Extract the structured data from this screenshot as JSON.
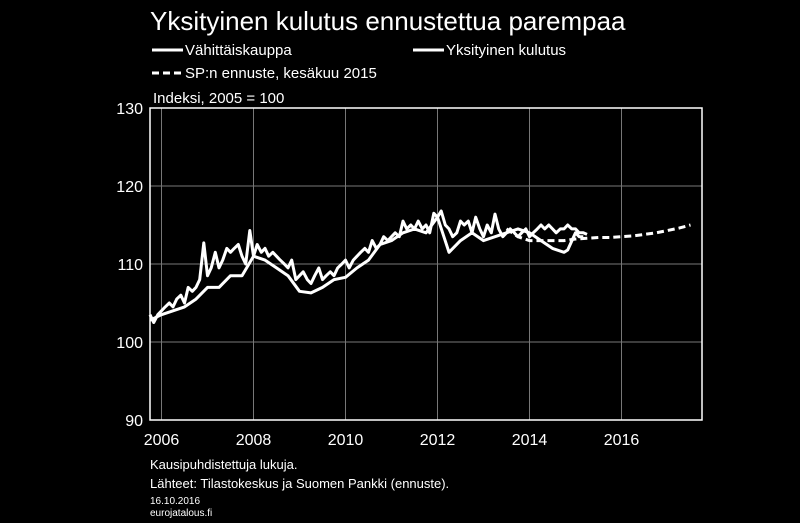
{
  "chart_data": {
    "type": "line",
    "title": "Yksityinen kulutus ennustettua parempaa",
    "unit_label": "Indeksi, 2005 = 100",
    "ylim": [
      90,
      130
    ],
    "yticks": [
      "90",
      "100",
      "110",
      "120",
      "130"
    ],
    "xlim": [
      2005.75,
      2017.75
    ],
    "xticks": [
      {
        "value": 2006,
        "label": "2006"
      },
      {
        "value": 2008,
        "label": "2008"
      },
      {
        "value": 2010,
        "label": "2010"
      },
      {
        "value": 2012,
        "label": "2012"
      },
      {
        "value": 2014,
        "label": "2014"
      },
      {
        "value": 2016,
        "label": "2016"
      }
    ],
    "grid": true,
    "legend_position": "top",
    "series": [
      {
        "name": "Vähittäiskauppa",
        "style": "solid",
        "color": "#ffffff",
        "points": [
          [
            2005.75,
            103.5
          ],
          [
            2005.83,
            102.5
          ],
          [
            2005.92,
            103.5
          ],
          [
            2006.0,
            104.0
          ],
          [
            2006.08,
            104.5
          ],
          [
            2006.17,
            105.0
          ],
          [
            2006.25,
            104.5
          ],
          [
            2006.33,
            105.5
          ],
          [
            2006.42,
            106.0
          ],
          [
            2006.5,
            105.0
          ],
          [
            2006.58,
            107.0
          ],
          [
            2006.67,
            106.5
          ],
          [
            2006.75,
            107.0
          ],
          [
            2006.83,
            108.0
          ],
          [
            2006.92,
            112.7
          ],
          [
            2007.0,
            108.5
          ],
          [
            2007.08,
            109.5
          ],
          [
            2007.17,
            111.5
          ],
          [
            2007.25,
            109.5
          ],
          [
            2007.33,
            110.5
          ],
          [
            2007.42,
            112.0
          ],
          [
            2007.5,
            111.5
          ],
          [
            2007.58,
            112.0
          ],
          [
            2007.67,
            112.5
          ],
          [
            2007.75,
            111.0
          ],
          [
            2007.83,
            110.0
          ],
          [
            2007.92,
            114.3
          ],
          [
            2008.0,
            111.0
          ],
          [
            2008.08,
            112.5
          ],
          [
            2008.17,
            111.5
          ],
          [
            2008.25,
            112.0
          ],
          [
            2008.33,
            111.0
          ],
          [
            2008.42,
            111.5
          ],
          [
            2008.5,
            111.0
          ],
          [
            2008.58,
            110.5
          ],
          [
            2008.67,
            110.0
          ],
          [
            2008.75,
            109.5
          ],
          [
            2008.83,
            110.5
          ],
          [
            2008.92,
            108.0
          ],
          [
            2009.0,
            108.5
          ],
          [
            2009.08,
            109.0
          ],
          [
            2009.17,
            108.0
          ],
          [
            2009.25,
            107.5
          ],
          [
            2009.33,
            108.5
          ],
          [
            2009.42,
            109.5
          ],
          [
            2009.5,
            108.0
          ],
          [
            2009.58,
            108.5
          ],
          [
            2009.67,
            109.0
          ],
          [
            2009.75,
            108.5
          ],
          [
            2009.83,
            109.5
          ],
          [
            2009.92,
            110.0
          ],
          [
            2010.0,
            110.5
          ],
          [
            2010.08,
            109.5
          ],
          [
            2010.17,
            110.5
          ],
          [
            2010.25,
            111.0
          ],
          [
            2010.33,
            111.5
          ],
          [
            2010.42,
            112.0
          ],
          [
            2010.5,
            111.5
          ],
          [
            2010.58,
            113.0
          ],
          [
            2010.67,
            112.0
          ],
          [
            2010.75,
            112.5
          ],
          [
            2010.83,
            113.5
          ],
          [
            2010.92,
            113.0
          ],
          [
            2011.0,
            113.5
          ],
          [
            2011.08,
            114.0
          ],
          [
            2011.17,
            113.5
          ],
          [
            2011.25,
            115.5
          ],
          [
            2011.33,
            114.5
          ],
          [
            2011.42,
            115.0
          ],
          [
            2011.5,
            114.5
          ],
          [
            2011.58,
            115.5
          ],
          [
            2011.67,
            114.5
          ],
          [
            2011.75,
            115.0
          ],
          [
            2011.83,
            114.0
          ],
          [
            2011.92,
            116.5
          ],
          [
            2012.0,
            116.0
          ],
          [
            2012.08,
            116.8
          ],
          [
            2012.17,
            115.0
          ],
          [
            2012.25,
            114.5
          ],
          [
            2012.33,
            113.5
          ],
          [
            2012.42,
            114.0
          ],
          [
            2012.5,
            115.5
          ],
          [
            2012.58,
            115.0
          ],
          [
            2012.67,
            115.5
          ],
          [
            2012.75,
            114.0
          ],
          [
            2012.83,
            116.0
          ],
          [
            2012.92,
            114.5
          ],
          [
            2013.0,
            113.5
          ],
          [
            2013.08,
            115.0
          ],
          [
            2013.17,
            114.0
          ],
          [
            2013.25,
            116.4
          ],
          [
            2013.33,
            114.5
          ],
          [
            2013.42,
            113.5
          ],
          [
            2013.5,
            114.0
          ],
          [
            2013.58,
            114.5
          ],
          [
            2013.67,
            114.0
          ],
          [
            2013.75,
            113.5
          ],
          [
            2013.83,
            114.0
          ],
          [
            2013.92,
            114.5
          ],
          [
            2014.0,
            113.5
          ],
          [
            2014.08,
            114.0
          ],
          [
            2014.17,
            114.5
          ],
          [
            2014.25,
            115.0
          ],
          [
            2014.33,
            114.5
          ],
          [
            2014.42,
            115.0
          ],
          [
            2014.5,
            114.5
          ],
          [
            2014.58,
            114.0
          ],
          [
            2014.67,
            114.5
          ],
          [
            2014.75,
            114.5
          ],
          [
            2014.83,
            115.0
          ],
          [
            2014.92,
            114.5
          ],
          [
            2015.0,
            114.5
          ],
          [
            2015.08,
            114.0
          ],
          [
            2015.17,
            114.0
          ],
          [
            2015.25,
            113.8
          ]
        ]
      },
      {
        "name": "Yksityinen kulutus",
        "style": "solid",
        "color": "#ffffff",
        "points": [
          [
            2005.75,
            102.8
          ],
          [
            2006.0,
            103.5
          ],
          [
            2006.25,
            104.0
          ],
          [
            2006.5,
            104.5
          ],
          [
            2006.75,
            105.5
          ],
          [
            2007.0,
            107.0
          ],
          [
            2007.25,
            107.0
          ],
          [
            2007.5,
            108.5
          ],
          [
            2007.75,
            108.5
          ],
          [
            2008.0,
            111.0
          ],
          [
            2008.25,
            110.5
          ],
          [
            2008.5,
            109.5
          ],
          [
            2008.75,
            108.5
          ],
          [
            2009.0,
            106.5
          ],
          [
            2009.25,
            106.3
          ],
          [
            2009.5,
            107.0
          ],
          [
            2009.75,
            108.0
          ],
          [
            2010.0,
            108.3
          ],
          [
            2010.25,
            109.5
          ],
          [
            2010.5,
            110.5
          ],
          [
            2010.75,
            112.5
          ],
          [
            2011.0,
            113.0
          ],
          [
            2011.25,
            114.0
          ],
          [
            2011.5,
            114.5
          ],
          [
            2011.75,
            114.0
          ],
          [
            2012.0,
            116.0
          ],
          [
            2012.25,
            111.5
          ],
          [
            2012.5,
            113.0
          ],
          [
            2012.75,
            114.0
          ],
          [
            2013.0,
            113.0
          ],
          [
            2013.25,
            113.5
          ],
          [
            2013.5,
            114.0
          ],
          [
            2013.75,
            114.5
          ],
          [
            2014.0,
            114.0
          ],
          [
            2014.25,
            113.0
          ],
          [
            2014.5,
            112.0
          ],
          [
            2014.75,
            111.5
          ],
          [
            2014.83,
            111.8
          ],
          [
            2015.0,
            114.0
          ],
          [
            2015.08,
            113.5
          ],
          [
            2015.17,
            113.5
          ]
        ]
      },
      {
        "name": "SP:n ennuste, kesäkuu 2015",
        "style": "dashed",
        "color": "#ffffff",
        "points": [
          [
            2013.5,
            114.5
          ],
          [
            2013.75,
            113.5
          ],
          [
            2014.0,
            113.0
          ],
          [
            2014.25,
            113.0
          ],
          [
            2014.5,
            113.0
          ],
          [
            2014.75,
            113.0
          ],
          [
            2015.0,
            113.2
          ],
          [
            2015.25,
            113.3
          ],
          [
            2015.5,
            113.4
          ],
          [
            2015.75,
            113.4
          ],
          [
            2016.0,
            113.5
          ],
          [
            2016.25,
            113.6
          ],
          [
            2016.5,
            113.8
          ],
          [
            2016.75,
            114.0
          ],
          [
            2017.0,
            114.3
          ],
          [
            2017.25,
            114.6
          ],
          [
            2017.5,
            115.0
          ]
        ]
      }
    ]
  },
  "notes": {
    "seasonal": "Kausipuhdistettuja lukuja.",
    "sources": "Lähteet: Tilastokeskus ja Suomen Pankki (ennuste).",
    "date": "16.10.2016",
    "site": "eurojatalous.fi"
  }
}
